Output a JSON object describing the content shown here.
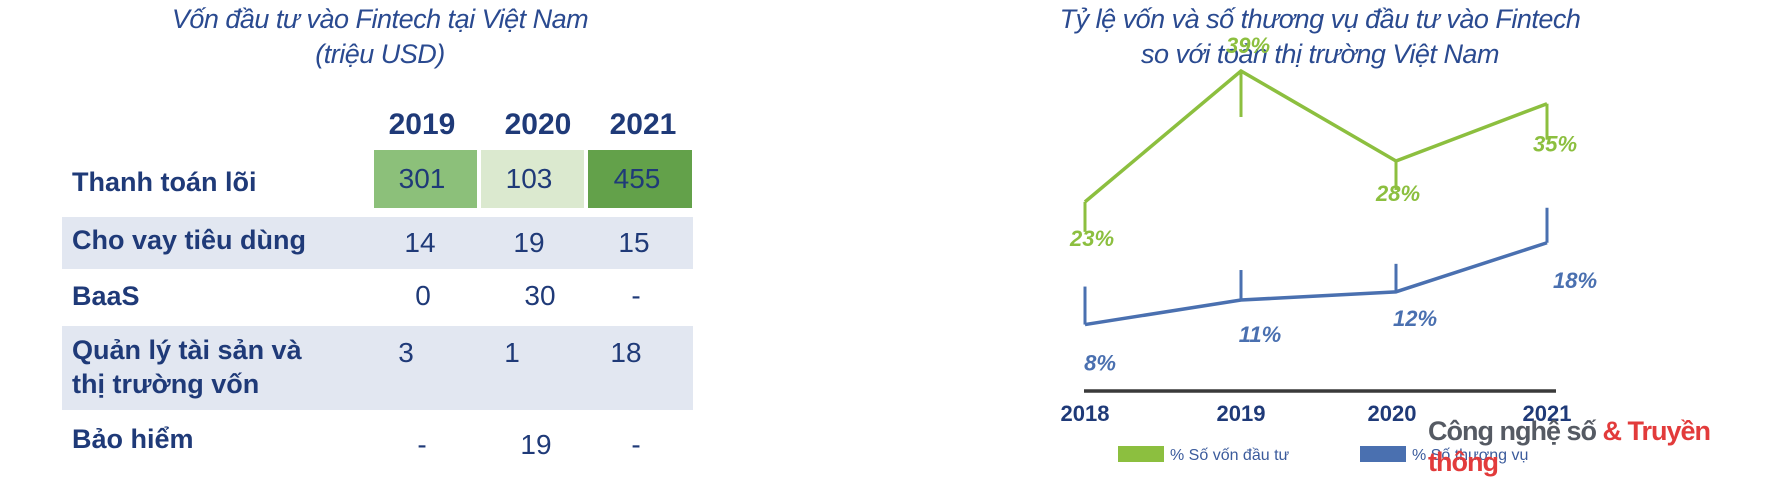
{
  "left": {
    "title_line1": "Vốn đầu tư vào Fintech tại Việt Nam",
    "title_line2": "(triệu USD)",
    "years": [
      "2019",
      "2020",
      "2021"
    ],
    "rows": [
      {
        "label_lines": [
          "Thanh toán lõi"
        ],
        "values": [
          "301",
          "103",
          "455"
        ]
      },
      {
        "label_lines": [
          "Cho vay tiêu dùng"
        ],
        "values": [
          "14",
          "19",
          "15"
        ]
      },
      {
        "label_lines": [
          "BaaS"
        ],
        "values": [
          "0",
          "30",
          "-"
        ]
      },
      {
        "label_lines": [
          "Quản lý tài sản và",
          "thị trường vốn"
        ],
        "values": [
          "3",
          "1",
          "18"
        ]
      },
      {
        "label_lines": [
          "Bảo hiểm"
        ],
        "values": [
          "-",
          "19",
          "-"
        ]
      }
    ],
    "highlight_colors": [
      "#8cc07a",
      "#dbe9cf",
      "#63a14a"
    ],
    "band_color": "#e2e7f1"
  },
  "chart_data": {
    "type": "line",
    "title": "Tỷ lệ vốn và số thương vụ đầu tư vào Fintech so với toàn thị trường Việt Nam",
    "title_lines": [
      "Tỷ lệ vốn và số thương vụ đầu tư vào Fintech",
      "so với toàn thị trường Việt Nam"
    ],
    "x": [
      "2018",
      "2019",
      "2020",
      "2021"
    ],
    "series": [
      {
        "name": "% Số vốn đầu tư",
        "values": [
          23,
          39,
          28,
          35
        ],
        "labels": [
          "23%",
          "39%",
          "28%",
          "35%"
        ],
        "color": "#8cbf3f"
      },
      {
        "name": "% Số thương vụ",
        "values": [
          8,
          11,
          12,
          18
        ],
        "labels": [
          "8%",
          "11%",
          "12%",
          "18%"
        ],
        "color": "#4a70b0"
      }
    ],
    "axis_color": "#3a3a3a"
  },
  "watermark": {
    "part1": "Công nghệ số",
    "amp": " & ",
    "part2": "Truyền thông"
  }
}
